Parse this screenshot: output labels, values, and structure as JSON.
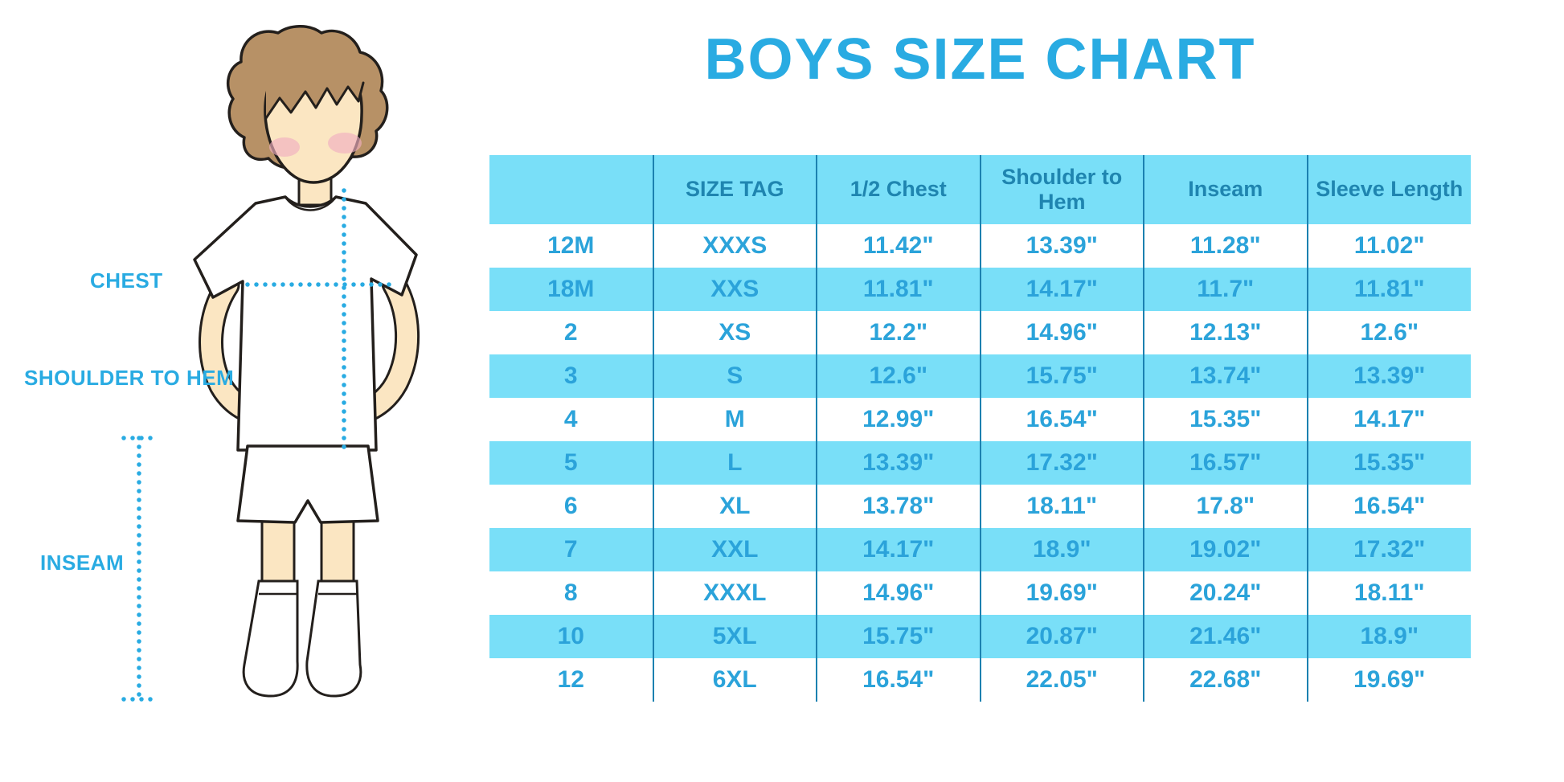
{
  "title": "BOYS SIZE CHART",
  "colors": {
    "accent_blue": "#29ABE2",
    "stripe_blue": "#79DFF8",
    "header_text_blue": "#1F85B0",
    "cell_text_blue": "#2BA3DA",
    "divider_blue": "#1C81B0",
    "skin": "#FBE6C2",
    "hair": "#B79166",
    "blush": "#F0AFC0",
    "outline": "#231F1C"
  },
  "diagram": {
    "labels": {
      "chest": "CHEST",
      "shoulder_to_hem": "SHOULDER TO HEM",
      "inseam": "INSEAM"
    },
    "figure": "boy in white t-shirt, shorts and socks with dotted measurement guides"
  },
  "chart_data": {
    "type": "table",
    "title": "BOYS SIZE CHART",
    "columns": [
      "",
      "SIZE TAG",
      "1/2 Chest",
      "Shoulder to Hem",
      "Inseam",
      "Sleeve Length"
    ],
    "rows": [
      [
        "12M",
        "XXXS",
        "11.42\"",
        "13.39\"",
        "11.28\"",
        "11.02\""
      ],
      [
        "18M",
        "XXS",
        "11.81\"",
        "14.17\"",
        "11.7\"",
        "11.81\""
      ],
      [
        "2",
        "XS",
        "12.2\"",
        "14.96\"",
        "12.13\"",
        "12.6\""
      ],
      [
        "3",
        "S",
        "12.6\"",
        "15.75\"",
        "13.74\"",
        "13.39\""
      ],
      [
        "4",
        "M",
        "12.99\"",
        "16.54\"",
        "15.35\"",
        "14.17\""
      ],
      [
        "5",
        "L",
        "13.39\"",
        "17.32\"",
        "16.57\"",
        "15.35\""
      ],
      [
        "6",
        "XL",
        "13.78\"",
        "18.11\"",
        "17.8\"",
        "16.54\""
      ],
      [
        "7",
        "XXL",
        "14.17\"",
        "18.9\"",
        "19.02\"",
        "17.32\""
      ],
      [
        "8",
        "XXXL",
        "14.96\"",
        "19.69\"",
        "20.24\"",
        "18.11\""
      ],
      [
        "10",
        "5XL",
        "15.75\"",
        "20.87\"",
        "21.46\"",
        "18.9\""
      ],
      [
        "12",
        "6XL",
        "16.54\"",
        "22.05\"",
        "22.68\"",
        "19.69\""
      ]
    ],
    "layout": {
      "striped_rows": true,
      "stripe_pattern": "header and even data rows light cyan, odd data rows white",
      "grid": "vertical dividers only"
    }
  }
}
